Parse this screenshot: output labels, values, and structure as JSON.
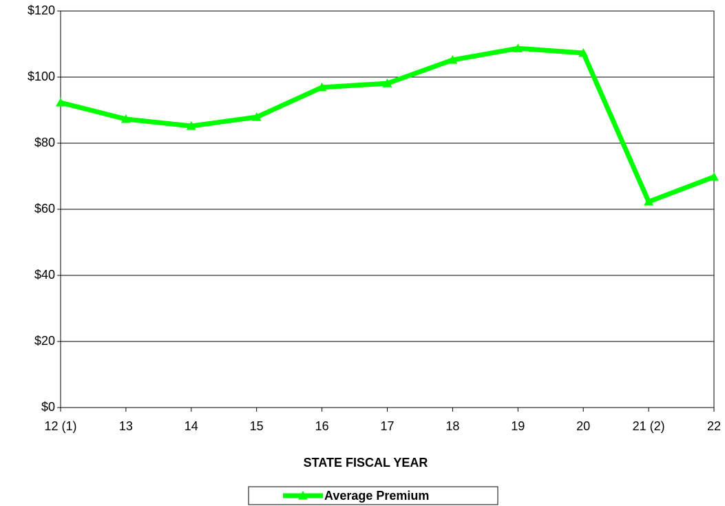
{
  "chart_data": {
    "type": "line",
    "x_label": "STATE FISCAL YEAR",
    "categories": [
      "12 (1)",
      "13",
      "14",
      "15",
      "16",
      "17",
      "18",
      "19",
      "20",
      "21 (2)",
      "22"
    ],
    "series": [
      {
        "name": "Average Premium",
        "color": "#00ff00",
        "values": [
          92.3,
          87.3,
          85.2,
          87.9,
          96.9,
          98.1,
          105.2,
          108.7,
          107.3,
          62.3,
          69.8
        ]
      }
    ],
    "ylim": [
      0,
      120
    ],
    "yticks": [
      {
        "value": 0,
        "label": "$0"
      },
      {
        "value": 20,
        "label": "$20"
      },
      {
        "value": 40,
        "label": "$40"
      },
      {
        "value": 60,
        "label": "$60"
      },
      {
        "value": 80,
        "label": "$80"
      },
      {
        "value": 100,
        "label": "$100"
      },
      {
        "value": 120,
        "label": "$120"
      }
    ],
    "grid": true,
    "legend": "bottom"
  }
}
